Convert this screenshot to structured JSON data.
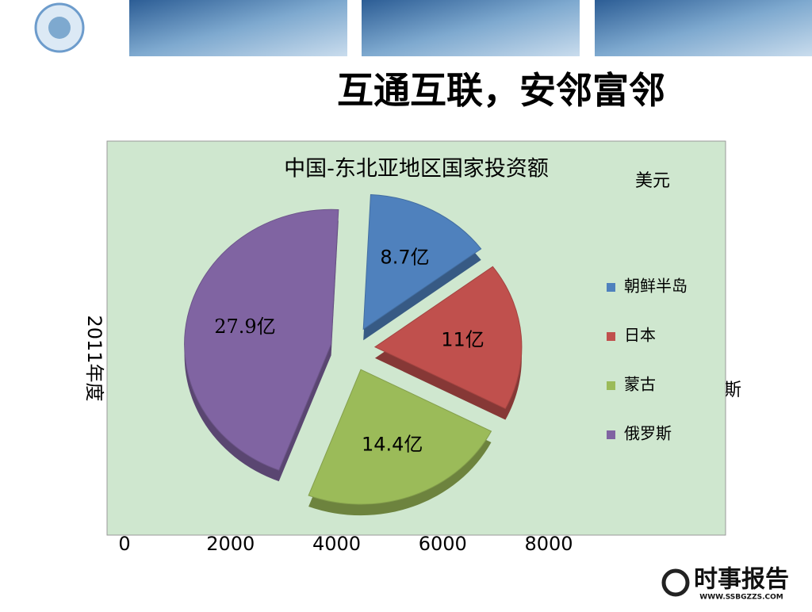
{
  "slide": {
    "title": "互通互联，安邻富邻",
    "fragment": "斯",
    "logo": {
      "name": "时事报告",
      "url": "WWW.SSBGZZS.COM"
    }
  },
  "chart_data": [
    {
      "type": "pie",
      "title": "中国-东北亚地区国家投资额",
      "unit": "美元",
      "categories": [
        "朝鲜半岛",
        "日本",
        "蒙古",
        "俄罗斯"
      ],
      "values": [
        8.7,
        11,
        14.4,
        27.9
      ],
      "value_labels": [
        "8.7亿",
        "11亿",
        "14.4亿",
        "27.9亿"
      ],
      "colors": [
        "#4f81bd",
        "#c0504d",
        "#9bbb59",
        "#8064a2"
      ],
      "legend": "right"
    },
    {
      "type": "bar",
      "ylabel": "2011年度",
      "xlim": [
        0,
        8000
      ],
      "xticks": [
        0,
        2000,
        4000,
        6000,
        8000
      ]
    }
  ]
}
